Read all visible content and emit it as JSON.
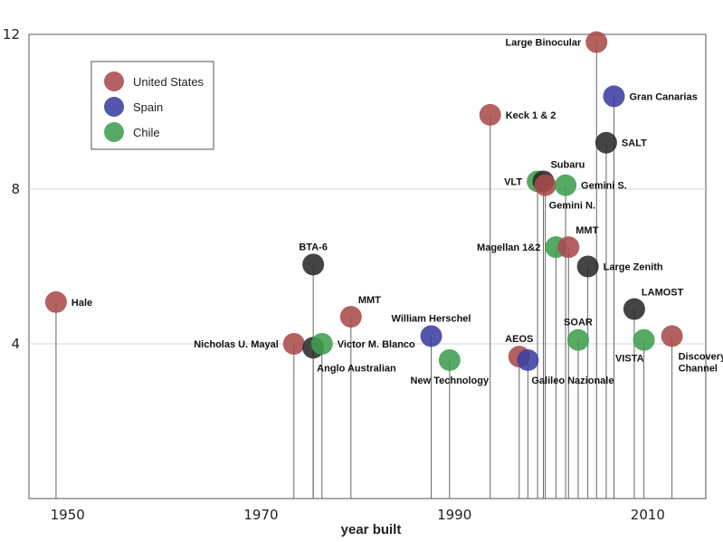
{
  "chart_data": {
    "type": "scatter",
    "title": "",
    "xlabel": "year built",
    "ylabel": "",
    "xlim": [
      1946,
      2016
    ],
    "ylim": [
      0,
      12
    ],
    "x_ticks": [
      1950,
      1970,
      1990,
      2010
    ],
    "y_ticks": [
      4,
      8,
      12
    ],
    "grid": "horizontal",
    "legend_position": "top-left",
    "colors": {
      "United States": "#a84b4b",
      "Spain": "#3b3f9e",
      "Chile": "#3f9e4f",
      "Other": "#2a2a2a"
    },
    "legend": [
      {
        "name": "United States",
        "color": "#a84b4b"
      },
      {
        "name": "Spain",
        "color": "#3b3f9e"
      },
      {
        "name": "Chile",
        "color": "#3f9e4f"
      }
    ],
    "points": [
      {
        "label": "Hale",
        "x": 1948.8,
        "y": 5.08,
        "group": "United States",
        "pos": "right"
      },
      {
        "label": "Nicholas U. Mayal",
        "x": 1973.4,
        "y": 4.0,
        "group": "United States",
        "pos": "left"
      },
      {
        "label": "BTA-6",
        "x": 1975.4,
        "y": 6.05,
        "group": "Other",
        "pos": "above"
      },
      {
        "label": "Anglo Australian",
        "x": 1975.4,
        "y": 3.9,
        "group": "Other",
        "pos": "below-right"
      },
      {
        "label": "Victor M. Blanco",
        "x": 1976.3,
        "y": 4.0,
        "group": "Chile",
        "pos": "right"
      },
      {
        "label": "MMT",
        "x": 1979.3,
        "y": 4.7,
        "group": "United States",
        "pos": "above-right"
      },
      {
        "label": "William Herschel",
        "x": 1987.6,
        "y": 4.2,
        "group": "Spain",
        "pos": "above"
      },
      {
        "label": "New Technology",
        "x": 1989.5,
        "y": 3.58,
        "group": "Chile",
        "pos": "below"
      },
      {
        "label": "Keck 1 & 2",
        "x": 1993.7,
        "y": 9.92,
        "group": "United States",
        "pos": "right"
      },
      {
        "label": "AEOS",
        "x": 1996.7,
        "y": 3.67,
        "group": "United States",
        "pos": "above"
      },
      {
        "label": "Galileo Nazionale",
        "x": 1997.6,
        "y": 3.58,
        "group": "Spain",
        "pos": "below-right"
      },
      {
        "label": "VLT",
        "x": 1998.6,
        "y": 8.2,
        "group": "Chile",
        "pos": "left"
      },
      {
        "label": "Subaru",
        "x": 1999.2,
        "y": 8.2,
        "group": "Other",
        "pos": "above-right"
      },
      {
        "label": "Gemini N.",
        "x": 1999.4,
        "y": 8.1,
        "group": "United States",
        "pos": "below-right"
      },
      {
        "label": "Gemini S.",
        "x": 2001.5,
        "y": 8.1,
        "group": "Chile",
        "pos": "right"
      },
      {
        "label": "Magellan 1&2",
        "x": 2000.5,
        "y": 6.5,
        "group": "Chile",
        "pos": "left"
      },
      {
        "label": "MMT",
        "x": 2001.8,
        "y": 6.5,
        "group": "United States",
        "pos": "above-right"
      },
      {
        "label": "SOAR",
        "x": 2002.8,
        "y": 4.1,
        "group": "Chile",
        "pos": "above"
      },
      {
        "label": "Large Zenith",
        "x": 2003.8,
        "y": 6.0,
        "group": "Other",
        "pos": "right"
      },
      {
        "label": "Large Binocular",
        "x": 2004.7,
        "y": 11.8,
        "group": "United States",
        "pos": "left"
      },
      {
        "label": "SALT",
        "x": 2005.7,
        "y": 9.2,
        "group": "Other",
        "pos": "right"
      },
      {
        "label": "Gran Canarias",
        "x": 2006.5,
        "y": 10.4,
        "group": "Spain",
        "pos": "right"
      },
      {
        "label": "LAMOST",
        "x": 2008.6,
        "y": 4.9,
        "group": "Other",
        "pos": "above-right"
      },
      {
        "label": "VISTA",
        "x": 2009.6,
        "y": 4.1,
        "group": "Chile",
        "pos": "below-left"
      },
      {
        "label": "Discovery Channel",
        "x": 2012.5,
        "y": 4.2,
        "group": "United States",
        "pos": "below-right-2"
      }
    ]
  }
}
